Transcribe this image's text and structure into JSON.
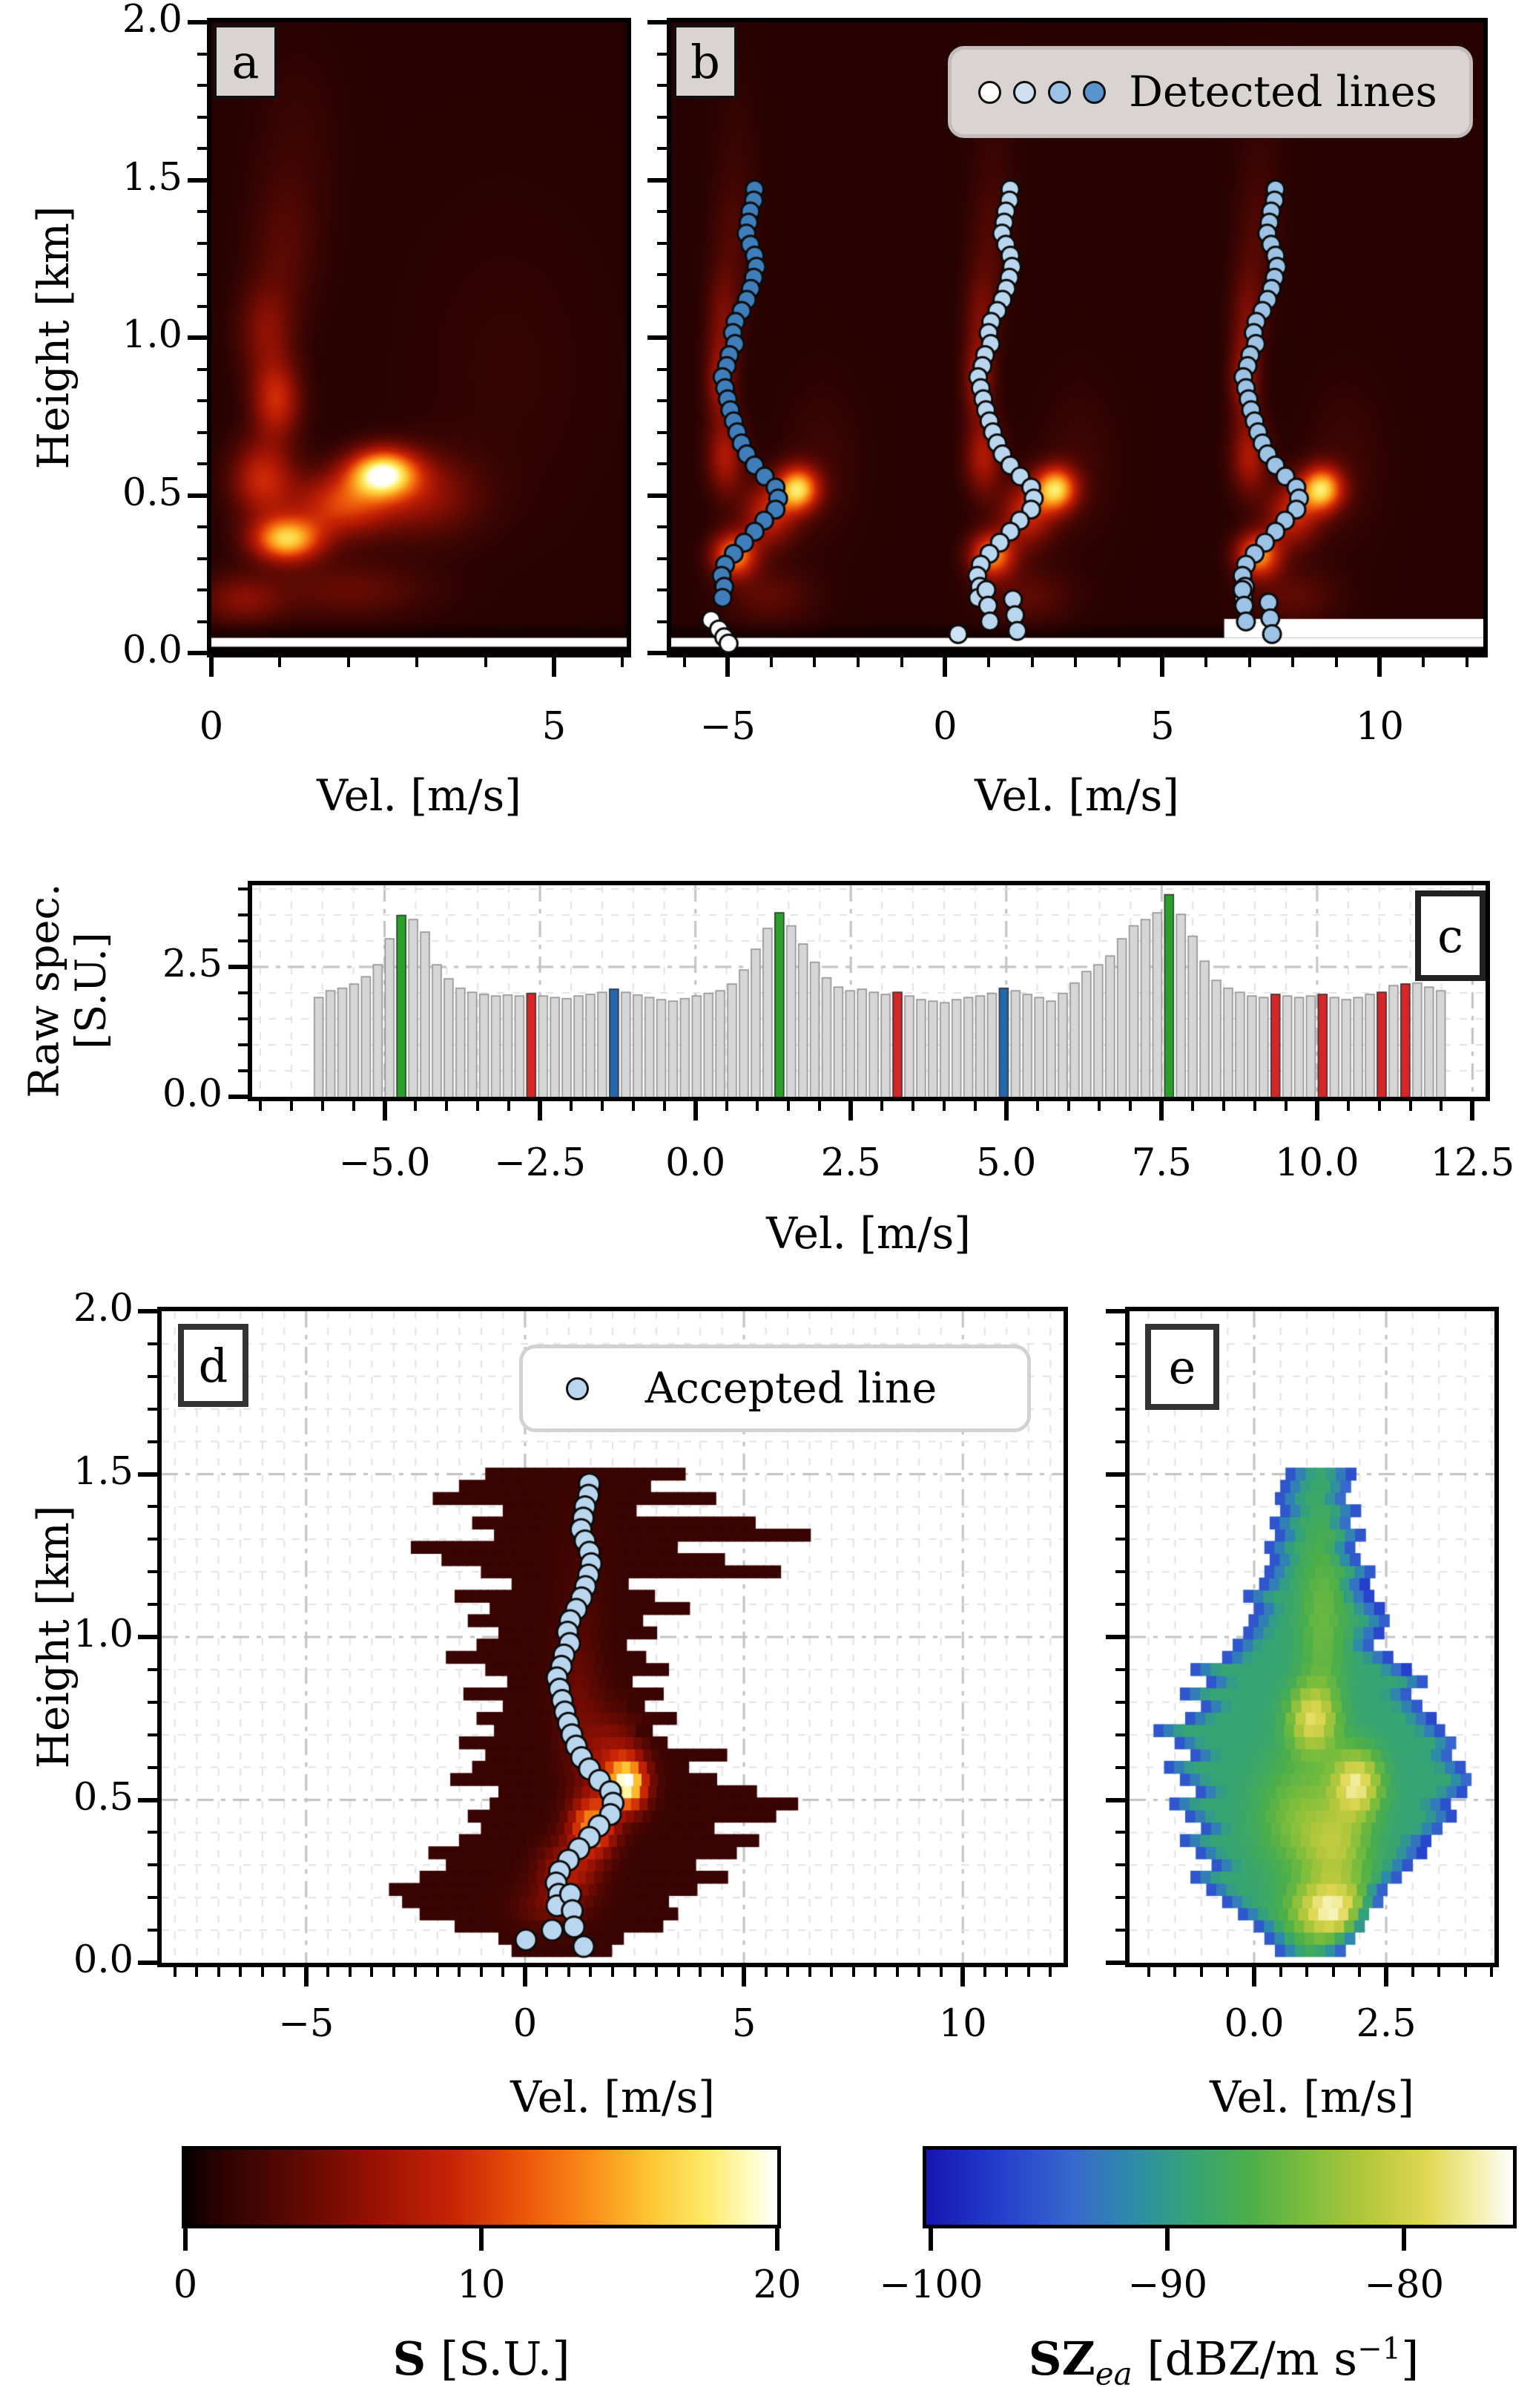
{
  "labels": {
    "height_axis": "Height [km]",
    "vel_axis": "Vel. [m/s]",
    "raw_spec_line1": "Raw spec.",
    "raw_spec_line2": "[S.U.]",
    "panel_a": "a",
    "panel_b": "b",
    "panel_c": "c",
    "panel_d": "d",
    "panel_e": "e",
    "legend_detected": "Detected lines",
    "legend_accepted": "Accepted line",
    "cb1_bold": "S",
    "cb1_rest": " [S.U.]",
    "cb2_bold": "SZ",
    "cb2_sub": "ea",
    "cb2_mid": " [dBZ/m s",
    "cb2_sup": "−1",
    "cb2_end": "]"
  },
  "axes": {
    "height_ticks": [
      [
        "2.0",
        2.0
      ],
      [
        "1.5",
        1.5
      ],
      [
        "1.0",
        1.0
      ],
      [
        "0.5",
        0.5
      ],
      [
        "0.0",
        0.0
      ]
    ],
    "a_x": [
      [
        "0",
        0
      ],
      [
        "5",
        5
      ]
    ],
    "b_x": [
      [
        "−5",
        -5
      ],
      [
        "0",
        0
      ],
      [
        "5",
        5
      ],
      [
        "10",
        10
      ]
    ],
    "c_x": [
      [
        "−5.0",
        -5
      ],
      [
        "−2.5",
        -2.5
      ],
      [
        "0.0",
        0
      ],
      [
        "2.5",
        2.5
      ],
      [
        "5.0",
        5
      ],
      [
        "7.5",
        7.5
      ],
      [
        "10.0",
        10
      ],
      [
        "12.5",
        12.5
      ]
    ],
    "c_y": [
      [
        "0.0",
        0
      ],
      [
        "2.5",
        2.5
      ]
    ],
    "d_x": [
      [
        "−5",
        -5
      ],
      [
        "0",
        0
      ],
      [
        "5",
        5
      ],
      [
        "10",
        10
      ]
    ],
    "e_x": [
      [
        "0.0",
        0
      ],
      [
        "2.5",
        2.5
      ]
    ],
    "cb1": [
      [
        "0",
        0
      ],
      [
        "10",
        10
      ],
      [
        "20",
        20
      ]
    ],
    "cb2": [
      [
        "−100",
        -100
      ],
      [
        "−90",
        -90
      ],
      [
        "−80",
        -80
      ]
    ]
  },
  "chart_data": {
    "shared": {
      "line_shape": [
        [
          1.47,
          0.12
        ],
        [
          1.435,
          0.1
        ],
        [
          1.4,
          0.02
        ],
        [
          1.365,
          -0.02
        ],
        [
          1.33,
          -0.07
        ],
        [
          1.295,
          0.02
        ],
        [
          1.26,
          0.12
        ],
        [
          1.225,
          0.16
        ],
        [
          1.19,
          0.1
        ],
        [
          1.155,
          0.03
        ],
        [
          1.12,
          -0.06
        ],
        [
          1.085,
          -0.18
        ],
        [
          1.05,
          -0.32
        ],
        [
          1.015,
          -0.38
        ],
        [
          0.98,
          -0.33
        ],
        [
          0.945,
          -0.46
        ],
        [
          0.91,
          -0.52
        ],
        [
          0.875,
          -0.62
        ],
        [
          0.84,
          -0.56
        ],
        [
          0.805,
          -0.5
        ],
        [
          0.77,
          -0.44
        ],
        [
          0.735,
          -0.36
        ],
        [
          0.7,
          -0.28
        ],
        [
          0.665,
          -0.18
        ],
        [
          0.63,
          -0.06
        ],
        [
          0.595,
          0.12
        ],
        [
          0.56,
          0.35
        ],
        [
          0.525,
          0.6
        ],
        [
          0.49,
          0.66
        ],
        [
          0.455,
          0.6
        ],
        [
          0.42,
          0.34
        ],
        [
          0.385,
          0.12
        ],
        [
          0.35,
          -0.12
        ],
        [
          0.315,
          -0.36
        ],
        [
          0.28,
          -0.56
        ],
        [
          0.245,
          -0.64
        ],
        [
          0.21,
          -0.58
        ],
        [
          0.175,
          -0.62
        ]
      ]
    },
    "a": {
      "type": "heatmap",
      "xlabel": "Vel. [m/s]",
      "ylabel": "Height [km]",
      "xlim": [
        0,
        6.06
      ],
      "ylim": [
        0,
        2
      ],
      "colormap": "hot",
      "value_range": [
        0,
        20
      ],
      "background_value": 0.85,
      "blobs": [
        [
          2.5,
          0.57,
          0.5,
          0.075,
          17
        ],
        [
          1.1,
          0.36,
          0.5,
          0.07,
          15
        ],
        [
          1.9,
          0.47,
          0.7,
          0.1,
          9
        ],
        [
          0.75,
          0.55,
          0.45,
          0.12,
          8
        ],
        [
          0.95,
          0.8,
          0.35,
          0.12,
          8
        ],
        [
          0.8,
          1.02,
          0.4,
          0.15,
          4.5
        ],
        [
          1.05,
          1.28,
          0.5,
          0.22,
          2.2
        ],
        [
          1.25,
          1.62,
          0.6,
          0.3,
          1.0
        ],
        [
          3.1,
          0.5,
          0.8,
          0.13,
          5
        ],
        [
          2.0,
          0.2,
          1.1,
          0.09,
          3.2
        ],
        [
          0.45,
          0.17,
          0.6,
          0.08,
          4.5
        ],
        [
          4.3,
          0.9,
          1.4,
          0.5,
          0.7
        ]
      ],
      "white_strip_h": [
        0.02,
        0.048
      ]
    },
    "b": {
      "type": "heatmap_scatter",
      "xlabel": "Vel. [m/s]",
      "xlim": [
        -6.3,
        12.38
      ],
      "ylim": [
        0,
        2
      ],
      "colormap": "hot",
      "value_range": [
        0,
        20
      ],
      "background_value": 0.85,
      "replica_centers": [
        -4.55,
        1.38,
        7.5
      ],
      "replica_blobs": [
        [
          1.17,
          0.52,
          0.48,
          0.07,
          15
        ],
        [
          -0.3,
          0.31,
          0.5,
          0.07,
          13
        ],
        [
          0.5,
          0.44,
          0.6,
          0.1,
          8
        ],
        [
          -0.5,
          0.62,
          0.42,
          0.12,
          6.5
        ],
        [
          -0.62,
          0.86,
          0.33,
          0.12,
          6
        ],
        [
          -0.55,
          1.06,
          0.38,
          0.15,
          3.8
        ],
        [
          -0.35,
          1.3,
          0.5,
          0.2,
          1.8
        ],
        [
          -0.25,
          1.6,
          0.55,
          0.28,
          0.8
        ],
        [
          0.5,
          0.18,
          1.0,
          0.09,
          2.8
        ],
        [
          1.7,
          0.6,
          0.9,
          0.25,
          1.2
        ]
      ],
      "white_strip_h": [
        0.02,
        0.048
      ],
      "white_strip_right": {
        "v_min": 6.42,
        "h": [
          0.048,
          0.108
        ]
      },
      "legend": "Detected lines",
      "legend_marker_colors": [
        "#ffffff",
        "#cfe0f2",
        "#9cc3e5",
        "#5795cc"
      ],
      "tracks": [
        {
          "center": -4.5,
          "color": "#3f7eba",
          "extras": [
            [
              -5.38,
              0.105,
              "#ffffff"
            ],
            [
              -5.2,
              0.075,
              "#ffffff"
            ],
            [
              -5.08,
              0.05,
              "#f5f5f5"
            ],
            [
              -4.98,
              0.03,
              "#ffffff"
            ]
          ]
        },
        {
          "center": 1.38,
          "color": "#b9d6ee",
          "extras": [
            [
              0.3,
              0.06,
              "#cfe2f3"
            ],
            [
              0.95,
              0.2,
              "#b9d6ee"
            ],
            [
              0.99,
              0.15,
              "#b9d6ee"
            ],
            [
              1.03,
              0.1,
              "#b9d6ee"
            ],
            [
              1.56,
              0.17,
              "#b9d6ee"
            ],
            [
              1.61,
              0.12,
              "#b9d6ee"
            ],
            [
              1.66,
              0.07,
              "#b9d6ee"
            ]
          ]
        },
        {
          "center": 7.48,
          "color": "#9cc3e5",
          "extras": [
            [
              6.84,
              0.2,
              "#9cc3e5"
            ],
            [
              6.88,
              0.15,
              "#9cc3e5"
            ],
            [
              6.92,
              0.1,
              "#9cc3e5"
            ],
            [
              7.44,
              0.16,
              "#9cc3e5"
            ],
            [
              7.48,
              0.11,
              "#9cc3e5"
            ],
            [
              7.52,
              0.06,
              "#9cc3e5"
            ]
          ]
        }
      ]
    },
    "c": {
      "type": "bar",
      "xlabel": "Vel. [m/s]",
      "ylabel": "Raw spec. [S.U.]",
      "xlim": [
        -7.13,
        12.71
      ],
      "ylim": [
        0,
        4.07
      ],
      "v_start": -6.06,
      "v_step": 0.19,
      "bar_color": "#d6d6d6",
      "bar_edge": "#8f8f8f",
      "values": [
        1.92,
        2.05,
        2.1,
        2.18,
        2.32,
        2.55,
        3.05,
        3.5,
        3.42,
        3.18,
        2.55,
        2.28,
        2.1,
        2.02,
        1.98,
        1.95,
        1.97,
        1.95,
        2.0,
        1.95,
        1.92,
        1.9,
        1.95,
        1.98,
        2.02,
        2.08,
        2.02,
        1.97,
        1.92,
        1.88,
        1.85,
        1.9,
        1.95,
        2.0,
        2.05,
        2.18,
        2.45,
        2.85,
        3.25,
        3.55,
        3.3,
        2.95,
        2.6,
        2.3,
        2.12,
        2.05,
        2.08,
        2.02,
        1.98,
        2.02,
        1.95,
        1.88,
        1.85,
        1.82,
        1.88,
        1.92,
        1.95,
        2.0,
        2.1,
        2.05,
        1.98,
        1.92,
        1.85,
        2.0,
        2.2,
        2.42,
        2.55,
        2.72,
        3.05,
        3.3,
        3.42,
        3.55,
        3.9,
        3.52,
        3.1,
        2.62,
        2.25,
        2.1,
        2.02,
        1.95,
        1.92,
        1.98,
        1.95,
        1.92,
        1.95,
        1.98,
        1.92,
        1.88,
        1.92,
        1.98,
        2.02,
        2.15,
        2.18,
        2.2,
        2.12,
        2.05
      ],
      "highlight_colors": {
        "green": "#2aa02a",
        "red": "#d62728",
        "blue": "#2467ad"
      },
      "highlights": {
        "7": "green",
        "18": "red",
        "25": "blue",
        "39": "green",
        "49": "red",
        "58": "blue",
        "72": "green",
        "81": "red",
        "85": "red",
        "90": "red",
        "92": "red"
      }
    },
    "d": {
      "type": "masked_heatmap_scatter",
      "xlabel": "Vel. [m/s]",
      "ylabel": "Height [km]",
      "xlim": [
        -8.3,
        12.3
      ],
      "ylim": [
        0,
        2
      ],
      "colormap": "hot",
      "value_range": [
        0,
        20
      ],
      "base_value": 1.8,
      "cell": [
        0.19,
        0.0375
      ],
      "blobs": [
        [
          2.35,
          0.55,
          0.42,
          0.075,
          16
        ],
        [
          1.55,
          0.42,
          0.5,
          0.085,
          12
        ],
        [
          1.0,
          0.28,
          0.65,
          0.09,
          6
        ],
        [
          1.95,
          0.62,
          0.7,
          0.14,
          5
        ],
        [
          1.2,
          0.8,
          0.5,
          0.2,
          2.2
        ],
        [
          1.3,
          1.1,
          0.55,
          0.3,
          0.8
        ],
        [
          0.55,
          0.17,
          0.8,
          0.07,
          2.5
        ]
      ],
      "rows_h0": 0.0375,
      "rows_dh": 0.0375,
      "rows": [
        [
          -0.3,
          2.0
        ],
        [
          -0.6,
          2.3
        ],
        [
          -1.6,
          3.2
        ],
        [
          -2.4,
          3.5
        ],
        [
          -2.8,
          3.3
        ],
        [
          -3.1,
          4.0
        ],
        [
          -2.4,
          4.6
        ],
        [
          -1.8,
          3.9
        ],
        [
          -2.2,
          4.9
        ],
        [
          -1.5,
          5.3
        ],
        [
          -1.0,
          4.4
        ],
        [
          -1.3,
          5.7
        ],
        [
          -0.8,
          6.3
        ],
        [
          -0.6,
          5.2
        ],
        [
          -1.7,
          4.3
        ],
        [
          -1.2,
          3.7
        ],
        [
          -0.9,
          4.6
        ],
        [
          -1.5,
          3.3
        ],
        [
          -0.7,
          2.9
        ],
        [
          -1.1,
          3.5
        ],
        [
          -0.5,
          2.7
        ],
        [
          -1.4,
          3.1
        ],
        [
          -0.4,
          2.5
        ],
        [
          -0.9,
          3.3
        ],
        [
          -1.8,
          2.8
        ],
        [
          -1.1,
          2.3
        ],
        [
          -0.6,
          3.0
        ],
        [
          -1.3,
          2.6
        ],
        [
          -0.8,
          3.7
        ],
        [
          -1.6,
          2.9
        ],
        [
          -0.3,
          2.4
        ],
        [
          -1.0,
          5.9
        ],
        [
          -1.9,
          4.6
        ],
        [
          -2.6,
          3.4
        ],
        [
          -0.7,
          6.6
        ],
        [
          -1.2,
          5.2
        ],
        [
          -0.5,
          2.6
        ],
        [
          -2.1,
          4.3
        ],
        [
          -1.5,
          2.9
        ],
        [
          -0.9,
          3.6
        ]
      ],
      "legend": "Accepted line",
      "track": {
        "center": 1.35,
        "color": "#b9d6ee",
        "extras": [
          [
            0.02,
            0.07,
            "#b9d6ee"
          ],
          [
            1.04,
            0.21,
            "#b9d6ee"
          ],
          [
            1.08,
            0.16,
            "#b9d6ee"
          ],
          [
            1.12,
            0.11,
            "#b9d6ee"
          ],
          [
            1.34,
            0.05,
            "#b9d6ee"
          ],
          [
            0.62,
            0.1,
            "#b9d6ee"
          ]
        ]
      }
    },
    "e": {
      "type": "masked_heatmap",
      "xlabel": "Vel. [m/s]",
      "xlim": [
        -2.36,
        4.55
      ],
      "ylim": [
        0,
        2
      ],
      "colormap": "blue_green_yellow",
      "value_range": [
        -100.2,
        -75.4
      ],
      "base_value": -97.5,
      "edge_rise": 8.5,
      "cell": [
        0.19,
        0.0375
      ],
      "blobs": [
        [
          1.1,
          0.75,
          0.45,
          0.1,
          9
        ],
        [
          1.95,
          0.55,
          0.45,
          0.1,
          11
        ],
        [
          1.45,
          0.16,
          0.7,
          0.09,
          12
        ],
        [
          0.9,
          0.45,
          0.8,
          0.18,
          5
        ],
        [
          1.3,
          1.05,
          0.45,
          0.3,
          4
        ],
        [
          1.6,
          0.35,
          0.6,
          0.12,
          6
        ]
      ],
      "rows_h0": 0.0375,
      "rows_dh": 0.0375,
      "rows": [
        [
          0.4,
          1.7
        ],
        [
          0.2,
          1.9
        ],
        [
          0.0,
          2.1
        ],
        [
          -0.3,
          2.2
        ],
        [
          -0.6,
          2.4
        ],
        [
          -0.9,
          2.5
        ],
        [
          -1.2,
          2.8
        ],
        [
          -0.8,
          3.0
        ],
        [
          -1.1,
          3.2
        ],
        [
          -1.4,
          3.3
        ],
        [
          -1.0,
          3.6
        ],
        [
          -1.3,
          3.8
        ],
        [
          -1.6,
          3.7
        ],
        [
          -1.1,
          4.0
        ],
        [
          -1.4,
          4.2
        ],
        [
          -1.7,
          4.0
        ],
        [
          -1.2,
          3.8
        ],
        [
          -1.5,
          3.9
        ],
        [
          -1.9,
          3.6
        ],
        [
          -1.3,
          3.4
        ],
        [
          -1.0,
          3.2
        ],
        [
          -1.4,
          3.0
        ],
        [
          -0.9,
          3.3
        ],
        [
          -1.2,
          2.9
        ],
        [
          -0.6,
          2.6
        ],
        [
          -0.4,
          2.3
        ],
        [
          -0.2,
          2.4
        ],
        [
          -0.1,
          2.6
        ],
        [
          0.0,
          2.4
        ],
        [
          -0.2,
          2.2
        ],
        [
          0.1,
          2.1
        ],
        [
          0.2,
          2.3
        ],
        [
          0.3,
          2.0
        ],
        [
          0.2,
          1.9
        ],
        [
          0.4,
          2.1
        ],
        [
          0.3,
          1.9
        ],
        [
          0.5,
          2.0
        ],
        [
          0.4,
          1.8
        ],
        [
          0.5,
          1.9
        ],
        [
          0.6,
          1.9
        ]
      ]
    },
    "colorbars": [
      {
        "id": "cb1",
        "colormap": "hot",
        "range": [
          0,
          20
        ],
        "label": "S [S.U.]"
      },
      {
        "id": "cb2",
        "colormap": "blue_green_yellow",
        "range": [
          -100.2,
          -75.4
        ],
        "label": "SZ_ea [dBZ/m s^-1]"
      }
    ]
  }
}
